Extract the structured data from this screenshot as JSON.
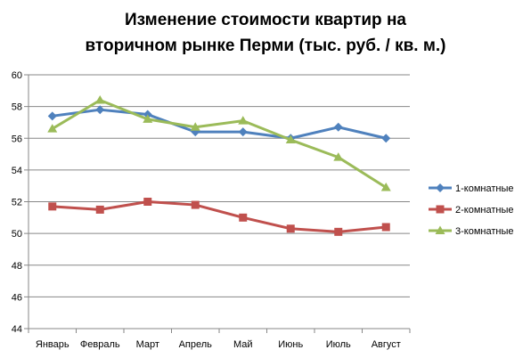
{
  "chart_data": {
    "type": "line",
    "title_lines": [
      "Изменение стоимости квартир на",
      "вторичном рынке Перми (тыс. руб. / кв. м.)"
    ],
    "categories": [
      "Январь",
      "Февраль",
      "Март",
      "Апрель",
      "Май",
      "Июнь",
      "Июль",
      "Август"
    ],
    "ylim": [
      44,
      60
    ],
    "yticks": [
      44,
      46,
      48,
      50,
      52,
      54,
      56,
      58,
      60
    ],
    "grid": "horizontal",
    "legend_position": "right",
    "series": [
      {
        "name": "1-комнатные",
        "color": "#4f81bd",
        "marker": "diamond",
        "values": [
          57.4,
          57.8,
          57.5,
          56.4,
          56.4,
          56.0,
          56.7,
          56.0
        ]
      },
      {
        "name": "2-комнатные",
        "color": "#c0504d",
        "marker": "square",
        "values": [
          51.7,
          51.5,
          52.0,
          51.8,
          51.0,
          50.3,
          50.1,
          50.4
        ]
      },
      {
        "name": "3-комнатные",
        "color": "#9bbb59",
        "marker": "triangle",
        "values": [
          56.6,
          58.4,
          57.2,
          56.7,
          57.1,
          55.9,
          54.8,
          52.9
        ]
      }
    ]
  }
}
